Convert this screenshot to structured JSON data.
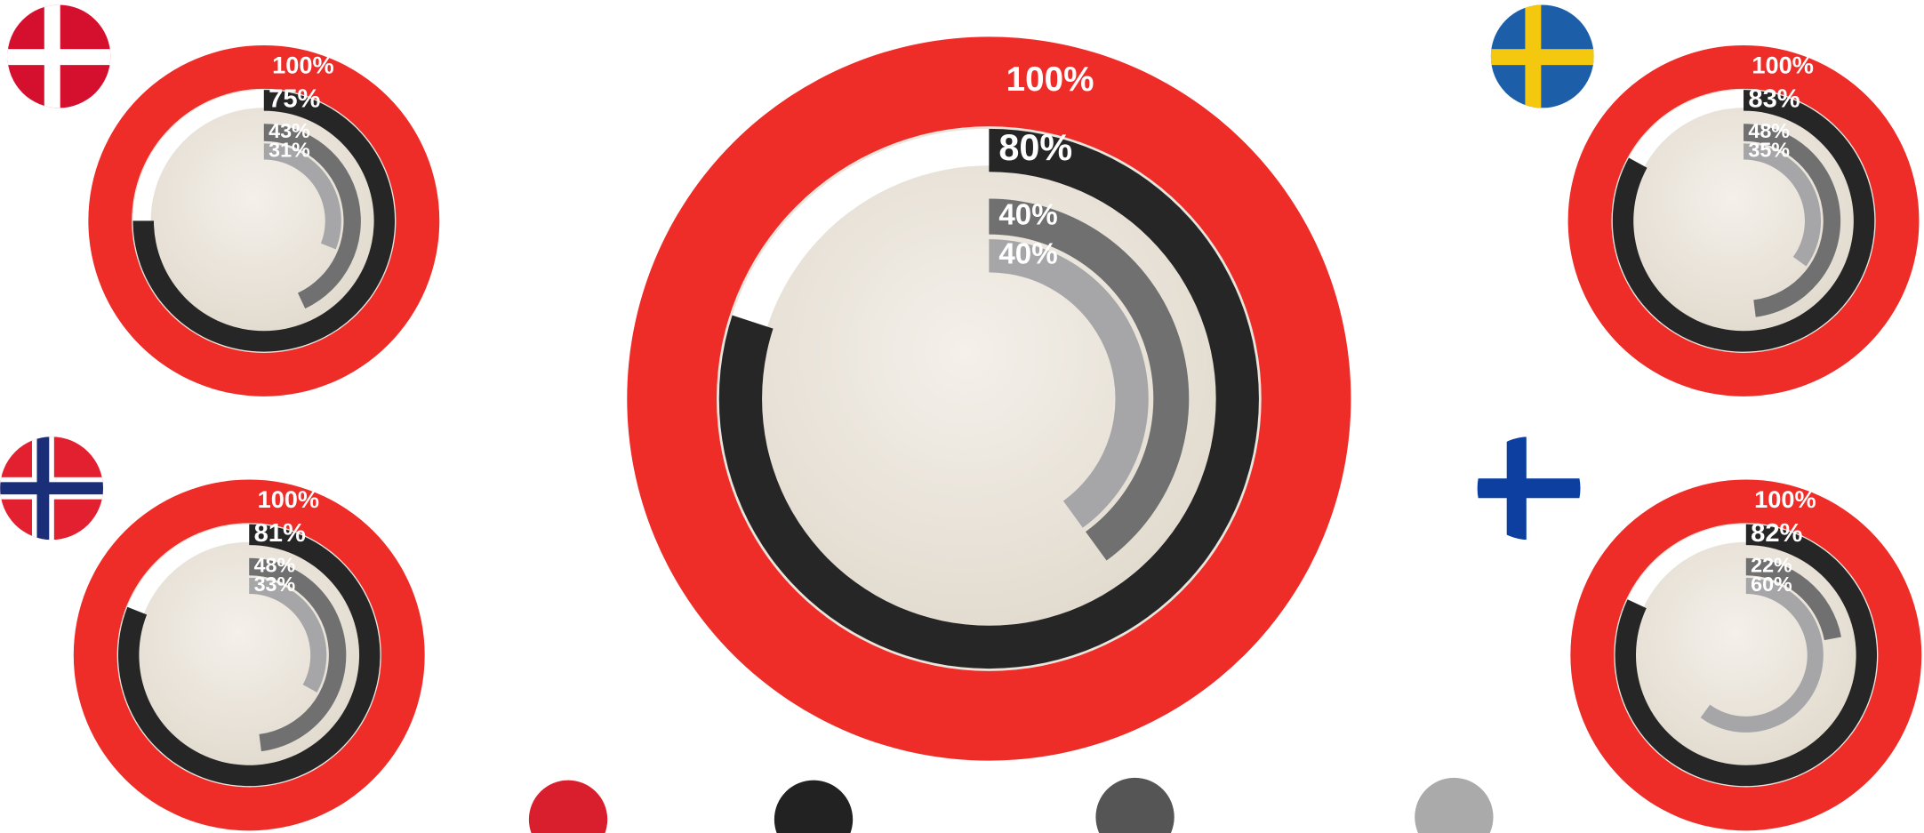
{
  "chart_data": [
    {
      "type": "radial_bar",
      "values": [
        100,
        80,
        40,
        40
      ],
      "value_labels": [
        "100%",
        "80%",
        "40%",
        "40%"
      ],
      "colors": [
        "#ee2c28",
        "#262626",
        "#707070",
        "#a6a6a8"
      ],
      "ylim": [
        0,
        100
      ]
    },
    {
      "type": "radial_bar",
      "values": [
        100,
        75,
        43,
        31
      ],
      "value_labels": [
        "100%",
        "75%",
        "43%",
        "31%"
      ],
      "colors": [
        "#ee2c28",
        "#262626",
        "#707070",
        "#a6a6a8"
      ],
      "ylim": [
        0,
        100
      ]
    },
    {
      "type": "radial_bar",
      "values": [
        100,
        83,
        48,
        35
      ],
      "value_labels": [
        "100%",
        "83%",
        "48%",
        "35%"
      ],
      "colors": [
        "#ee2c28",
        "#262626",
        "#707070",
        "#a6a6a8"
      ],
      "ylim": [
        0,
        100
      ]
    },
    {
      "type": "radial_bar",
      "values": [
        100,
        81,
        48,
        33
      ],
      "value_labels": [
        "100%",
        "81%",
        "48%",
        "33%"
      ],
      "colors": [
        "#ee2c28",
        "#262626",
        "#707070",
        "#a6a6a8"
      ],
      "ylim": [
        0,
        100
      ]
    },
    {
      "type": "radial_bar",
      "values": [
        100,
        82,
        22,
        60
      ],
      "value_labels": [
        "100%",
        "82%",
        "22%",
        "60%"
      ],
      "colors": [
        "#ee2c28",
        "#262626",
        "#707070",
        "#a6a6a8"
      ],
      "ylim": [
        0,
        100
      ]
    }
  ]
}
